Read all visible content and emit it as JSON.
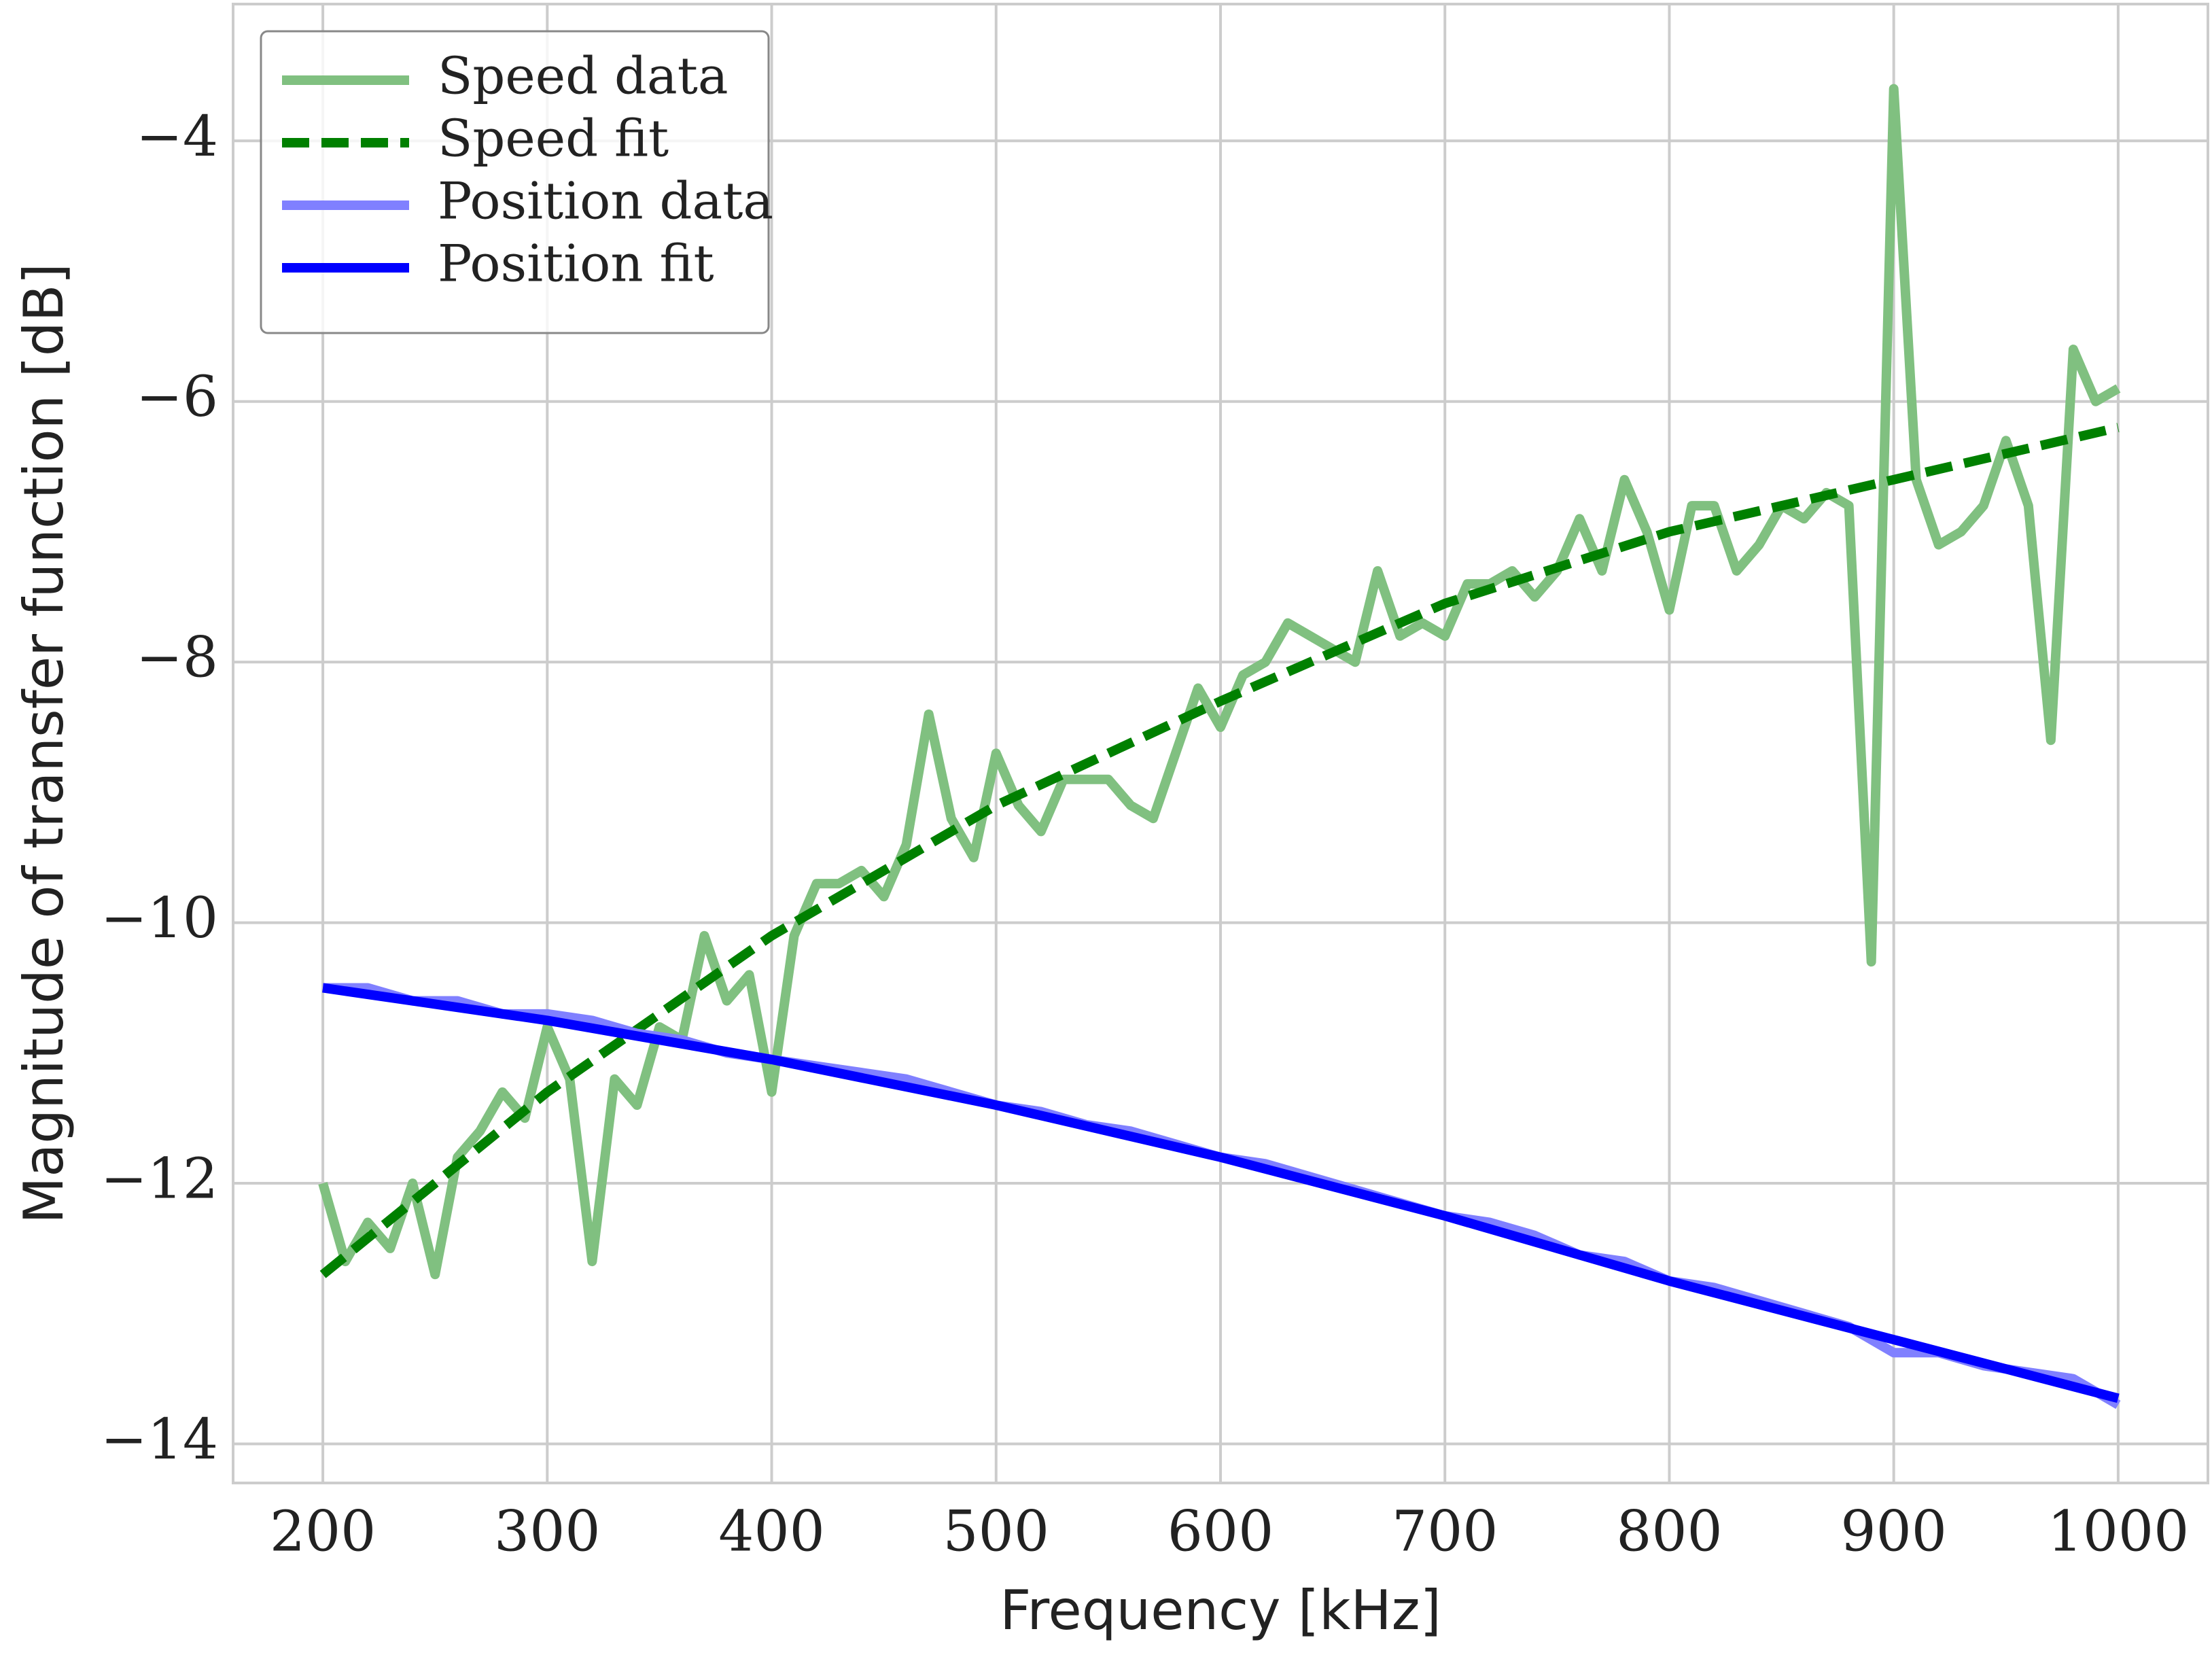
{
  "chart_data": {
    "type": "line",
    "xlabel": "Frequency [kHz]",
    "ylabel": "Magnitude of transfer function [dB]",
    "xlim": [
      160,
      1040
    ],
    "ylim": [
      -14.3,
      -2.95
    ],
    "xticks": [
      200,
      300,
      400,
      500,
      600,
      700,
      800,
      900,
      1000
    ],
    "yticks": [
      {
        "value": -14,
        "label": "−14"
      },
      {
        "value": -12,
        "label": "−12"
      },
      {
        "value": -10,
        "label": "−10"
      },
      {
        "value": -8,
        "label": "−8"
      },
      {
        "value": -6,
        "label": "−6"
      },
      {
        "value": -4,
        "label": "−4"
      }
    ],
    "grid": true,
    "legend": "upper left",
    "series": [
      {
        "name": "Speed data",
        "color": "#80c080",
        "style": "solid",
        "x": [
          200,
          210,
          220,
          230,
          240,
          250,
          260,
          270,
          280,
          290,
          300,
          310,
          320,
          330,
          340,
          350,
          360,
          370,
          380,
          390,
          400,
          410,
          420,
          430,
          440,
          450,
          460,
          470,
          480,
          490,
          500,
          510,
          520,
          530,
          540,
          550,
          560,
          570,
          580,
          590,
          600,
          610,
          620,
          630,
          640,
          650,
          660,
          670,
          680,
          690,
          700,
          710,
          720,
          730,
          740,
          750,
          760,
          770,
          780,
          790,
          800,
          810,
          820,
          830,
          840,
          850,
          860,
          870,
          880,
          890,
          900,
          910,
          920,
          930,
          940,
          950,
          960,
          970,
          980,
          990,
          1000
        ],
        "values": [
          -12.0,
          -12.6,
          -12.3,
          -12.5,
          -12.0,
          -12.7,
          -11.8,
          -11.6,
          -11.3,
          -11.5,
          -10.8,
          -11.2,
          -12.6,
          -11.2,
          -11.4,
          -10.8,
          -10.9,
          -10.1,
          -10.6,
          -10.4,
          -11.3,
          -10.1,
          -9.7,
          -9.7,
          -9.6,
          -9.8,
          -9.4,
          -8.4,
          -9.2,
          -9.5,
          -8.7,
          -9.1,
          -9.3,
          -8.9,
          -8.9,
          -8.9,
          -9.1,
          -9.2,
          -8.7,
          -8.2,
          -8.5,
          -8.1,
          -8.0,
          -7.7,
          -7.8,
          -7.9,
          -8.0,
          -7.3,
          -7.8,
          -7.7,
          -7.8,
          -7.4,
          -7.4,
          -7.3,
          -7.5,
          -7.3,
          -6.9,
          -7.3,
          -6.6,
          -7.0,
          -7.6,
          -6.8,
          -6.8,
          -7.3,
          -7.1,
          -6.8,
          -6.9,
          -6.7,
          -6.8,
          -10.3,
          -3.6,
          -6.6,
          -7.1,
          -7.0,
          -6.8,
          -6.3,
          -6.8,
          -8.6,
          -5.6,
          -6.0,
          -5.9
        ]
      },
      {
        "name": "Speed fit",
        "color": "#008000",
        "style": "dashed",
        "x": [
          200,
          300,
          400,
          500,
          600,
          700,
          800,
          900,
          1000
        ],
        "values": [
          -12.7,
          -11.3,
          -10.1,
          -9.1,
          -8.3,
          -7.55,
          -7.0,
          -6.6,
          -6.2
        ]
      },
      {
        "name": "Position data",
        "color": "#8080ff",
        "style": "solid",
        "x": [
          200,
          220,
          240,
          260,
          280,
          300,
          320,
          340,
          360,
          380,
          400,
          420,
          440,
          460,
          480,
          500,
          520,
          540,
          560,
          580,
          600,
          620,
          640,
          660,
          680,
          700,
          720,
          740,
          760,
          780,
          800,
          820,
          840,
          860,
          880,
          900,
          920,
          940,
          960,
          980,
          1000
        ],
        "values": [
          -10.5,
          -10.5,
          -10.6,
          -10.6,
          -10.7,
          -10.7,
          -10.75,
          -10.85,
          -10.9,
          -11.0,
          -11.05,
          -11.1,
          -11.15,
          -11.2,
          -11.3,
          -11.4,
          -11.45,
          -11.55,
          -11.6,
          -11.7,
          -11.8,
          -11.85,
          -11.95,
          -12.05,
          -12.15,
          -12.25,
          -12.3,
          -12.4,
          -12.55,
          -12.6,
          -12.75,
          -12.8,
          -12.9,
          -13.0,
          -13.1,
          -13.3,
          -13.3,
          -13.4,
          -13.45,
          -13.5,
          -13.7
        ]
      },
      {
        "name": "Position fit",
        "color": "#0000ff",
        "style": "solid",
        "x": [
          200,
          300,
          400,
          500,
          600,
          700,
          800,
          900,
          1000
        ],
        "values": [
          -10.5,
          -10.75,
          -11.05,
          -11.4,
          -11.8,
          -12.25,
          -12.75,
          -13.2,
          -13.65
        ]
      }
    ]
  }
}
